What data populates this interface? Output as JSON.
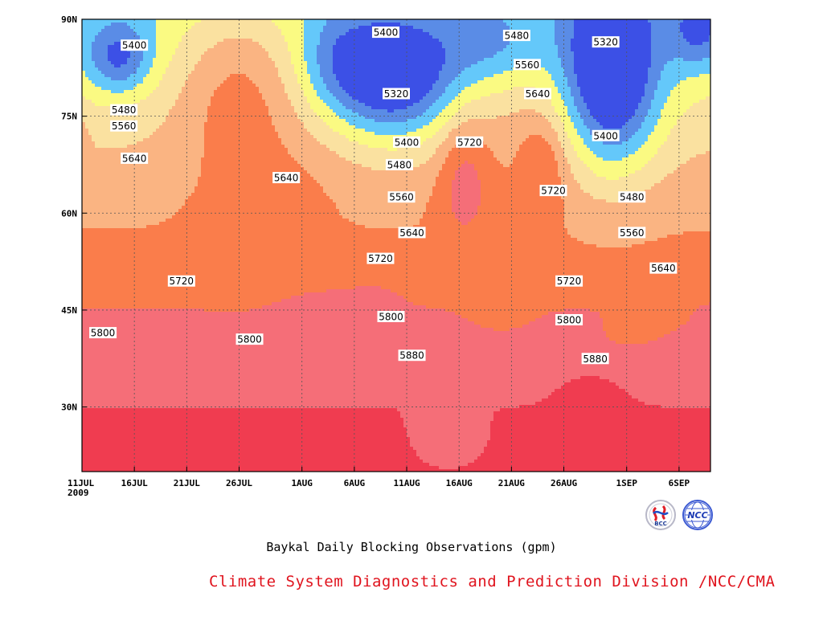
{
  "chart_data": {
    "type": "contour",
    "title": "Baykal Daily Blocking Observations (gpm)",
    "subtitle": "",
    "xlabel": "",
    "ylabel": "",
    "x_ticks": [
      "11JUL\n2009",
      "16JUL",
      "21JUL",
      "26JUL",
      "1AUG",
      "6AUG",
      "11AUG",
      "16AUG",
      "21AUG",
      "26AUG",
      "1SEP",
      "6SEP"
    ],
    "x_tick_days": [
      0,
      5,
      10,
      15,
      21,
      26,
      31,
      36,
      41,
      46,
      52,
      57
    ],
    "xlim_days": [
      0,
      60
    ],
    "y_ticks": [
      "30N",
      "45N",
      "60N",
      "75N",
      "90N"
    ],
    "y_tick_values": [
      30,
      45,
      60,
      75,
      90
    ],
    "ylim": [
      20,
      90
    ],
    "grid": true,
    "contour_levels": [
      5320,
      5400,
      5480,
      5560,
      5640,
      5720,
      5800,
      5880
    ],
    "level_colors": {
      "below_5320": "#3c50e6",
      "5320_5400": "#5a8ce6",
      "5400_5480": "#64c8fa",
      "5480_5560": "#fafa82",
      "5560_5640": "#fae1a0",
      "5640_5720": "#fab482",
      "5720_5800": "#fa7d4b",
      "5800_5880": "#f56e78",
      "above_5880": "#f03c50"
    },
    "contour_labels": [
      {
        "text": "5400",
        "day": 5,
        "lat": 86
      },
      {
        "text": "5480",
        "day": 4,
        "lat": 76
      },
      {
        "text": "5560",
        "day": 4,
        "lat": 73.5
      },
      {
        "text": "5640",
        "day": 5,
        "lat": 68.5
      },
      {
        "text": "5640",
        "day": 19.5,
        "lat": 65.5
      },
      {
        "text": "5400",
        "day": 29,
        "lat": 88
      },
      {
        "text": "5320",
        "day": 30,
        "lat": 78.5
      },
      {
        "text": "5400",
        "day": 31,
        "lat": 71
      },
      {
        "text": "5480",
        "day": 30.3,
        "lat": 67.5
      },
      {
        "text": "5560",
        "day": 30.5,
        "lat": 62.5
      },
      {
        "text": "5640",
        "day": 31.5,
        "lat": 57
      },
      {
        "text": "5720",
        "day": 28.5,
        "lat": 53
      },
      {
        "text": "5800",
        "day": 29.5,
        "lat": 44
      },
      {
        "text": "5880",
        "day": 31.5,
        "lat": 38
      },
      {
        "text": "5720",
        "day": 37,
        "lat": 71
      },
      {
        "text": "5480",
        "day": 41.5,
        "lat": 87.5
      },
      {
        "text": "5560",
        "day": 42.5,
        "lat": 83
      },
      {
        "text": "5640",
        "day": 43.5,
        "lat": 78.5
      },
      {
        "text": "5720",
        "day": 45,
        "lat": 63.5
      },
      {
        "text": "5720",
        "day": 46.5,
        "lat": 49.5
      },
      {
        "text": "5800",
        "day": 46.5,
        "lat": 43.5
      },
      {
        "text": "5880",
        "day": 49,
        "lat": 37.5
      },
      {
        "text": "5320",
        "day": 50,
        "lat": 86.5
      },
      {
        "text": "5400",
        "day": 50,
        "lat": 72
      },
      {
        "text": "5480",
        "day": 52.5,
        "lat": 62.5
      },
      {
        "text": "5560",
        "day": 52.5,
        "lat": 57
      },
      {
        "text": "5640",
        "day": 55.5,
        "lat": 51.5
      },
      {
        "text": "5720",
        "day": 9.5,
        "lat": 49.5
      },
      {
        "text": "5800",
        "day": 2,
        "lat": 41.5
      },
      {
        "text": "5800",
        "day": 16,
        "lat": 40.5
      }
    ]
  },
  "footer": {
    "caption": "Baykal Daily Blocking Observations (gpm)",
    "credit": "Climate System Diagnostics and Prediction Division /NCC/CMA"
  },
  "logos": {
    "left": {
      "icon": "bcc-logo",
      "text": "BCC"
    },
    "right": {
      "icon": "ncc-logo",
      "text": "NCC"
    }
  }
}
